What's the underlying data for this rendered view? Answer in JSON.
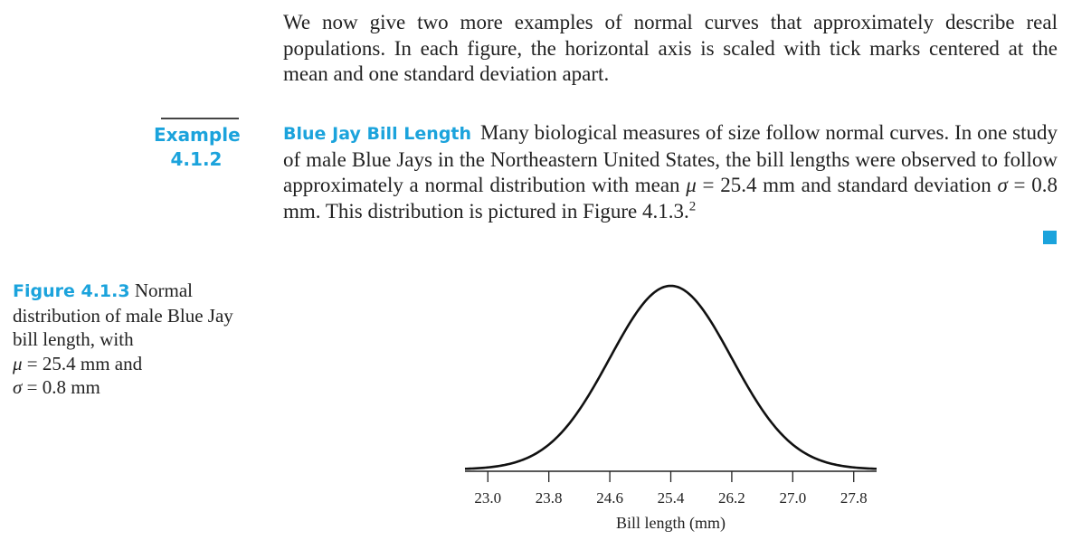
{
  "intro_text": "We now give two more examples of normal curves that approximately describe real populations. In each figure, the horizontal axis is scaled with tick marks centered at the mean and one standard deviation apart.",
  "example": {
    "label_line1": "Example",
    "label_line2": "4.1.2",
    "title": "Blue Jay Bill Length",
    "text_part1": "Many biological measures of size follow normal curves. In one study of male Blue Jays in the Northeastern United States, the bill lengths were observed to follow approximately a normal distribution with mean",
    "mu_symbol": "μ",
    "mu_value": " = 25.4 mm and standard deviation ",
    "sigma_symbol": "σ",
    "sigma_value": " = 0.8 mm. This distribution is pictured in Figure 4.1.3.",
    "footnote": "2"
  },
  "caption": {
    "label": "Figure 4.1.3",
    "text": " Normal distribution of male Blue Jay bill length, with",
    "mu_symbol": "μ",
    "mu_value": " = 25.4 mm and",
    "sigma_symbol": "σ",
    "sigma_value": " = 0.8 mm"
  },
  "colors": {
    "accent": "#1ba3dc",
    "text": "#222222"
  },
  "chart_data": {
    "type": "line",
    "mean": 25.4,
    "sd": 0.8,
    "xlim": [
      22.7,
      28.1
    ],
    "ticks": [
      23.0,
      23.8,
      24.6,
      25.4,
      26.2,
      27.0,
      27.8
    ],
    "tick_labels": [
      "23.0",
      "23.8",
      "24.6",
      "25.4",
      "26.2",
      "27.0",
      "27.8"
    ],
    "xlabel": "Bill length (mm)",
    "ylabel": "",
    "title": "",
    "grid": false
  }
}
